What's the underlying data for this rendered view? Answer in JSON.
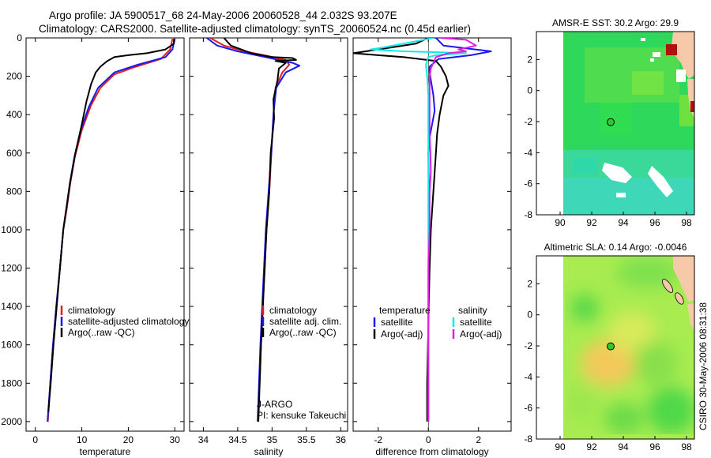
{
  "title_line1": "Argo profile: JA 5900517_68 24-May-2006 20060528_44 2.032S 93.207E",
  "title_line2": "Climatology: CARS2000. Satellite-adjusted climatology: synTS_20060524.nc (0.45d earlier)",
  "credit": "CSIRO 30-May-2006 08:31:38",
  "colors": {
    "red": "#e02020",
    "blue": "#1a1aee",
    "black": "#000000",
    "cyan": "#18e6e6",
    "magenta": "#e020e0"
  },
  "chart_data": [
    {
      "type": "line",
      "xlabel": "temperature",
      "xlim": [
        -2,
        32
      ],
      "ylim": [
        2050,
        0
      ],
      "xticks": [
        0,
        10,
        20,
        30
      ],
      "yticks": [
        0,
        200,
        400,
        600,
        800,
        1000,
        1200,
        1400,
        1600,
        1800,
        2000
      ],
      "legend": [
        {
          "label": "climatology",
          "color": "red"
        },
        {
          "label": "satellite-adjusted climatology",
          "color": "blue"
        },
        {
          "label": "Argo(..raw -QC)",
          "color": "black"
        }
      ],
      "series": [
        {
          "name": "climatology",
          "color": "red",
          "points": [
            [
              29.5,
              5
            ],
            [
              29,
              60
            ],
            [
              27,
              110
            ],
            [
              21,
              155
            ],
            [
              17,
              190
            ],
            [
              14,
              260
            ],
            [
              12,
              350
            ],
            [
              10,
              480
            ],
            [
              8.5,
              620
            ],
            [
              7.5,
              760
            ],
            [
              6.7,
              900
            ],
            [
              6,
              1000
            ],
            [
              5.3,
              1200
            ],
            [
              4.5,
              1400
            ],
            [
              3.8,
              1600
            ],
            [
              3.2,
              1800
            ],
            [
              2.7,
              2000
            ]
          ]
        },
        {
          "name": "satellite-adjusted climatology",
          "color": "blue",
          "points": [
            [
              30,
              5
            ],
            [
              29.5,
              60
            ],
            [
              28,
              100
            ],
            [
              22,
              140
            ],
            [
              17,
              180
            ],
            [
              13.5,
              260
            ],
            [
              11.5,
              360
            ],
            [
              9.8,
              480
            ],
            [
              8.4,
              620
            ],
            [
              7.4,
              760
            ],
            [
              6.6,
              900
            ],
            [
              6,
              1000
            ],
            [
              5.3,
              1200
            ],
            [
              4.5,
              1400
            ],
            [
              3.8,
              1600
            ],
            [
              3.2,
              1800
            ],
            [
              2.6,
              2000
            ]
          ]
        },
        {
          "name": "Argo(..raw -QC)",
          "color": "black",
          "points": [
            [
              29.8,
              5
            ],
            [
              29.8,
              30
            ],
            [
              28,
              60
            ],
            [
              24,
              80
            ],
            [
              20,
              90
            ],
            [
              17,
              100
            ],
            [
              15.5,
              120
            ],
            [
              14,
              150
            ],
            [
              13,
              180
            ],
            [
              12,
              240
            ],
            [
              11,
              330
            ],
            [
              10,
              450
            ],
            [
              8.6,
              600
            ],
            [
              7.5,
              750
            ],
            [
              6.6,
              900
            ],
            [
              6,
              1000
            ],
            [
              5.3,
              1200
            ],
            [
              4.6,
              1400
            ],
            [
              3.9,
              1600
            ],
            [
              3.3,
              1800
            ],
            [
              2.8,
              1950
            ]
          ]
        }
      ]
    },
    {
      "type": "line",
      "xlabel": "salinity",
      "xlim": [
        33.8,
        36.1
      ],
      "ylim": [
        2050,
        0
      ],
      "xticks": [
        34,
        34.5,
        35,
        35.5,
        36
      ],
      "legend": [
        {
          "label": "climatology",
          "color": "red"
        },
        {
          "label": "satellite adj. clim.",
          "color": "blue"
        },
        {
          "label": "Argo(..raw -QC)",
          "color": "black"
        }
      ],
      "annotations": [
        "J-ARGO",
        "PI: kensuke Takeuchi"
      ],
      "series": [
        {
          "name": "climatology",
          "color": "red",
          "points": [
            [
              34.1,
              0
            ],
            [
              34.3,
              40
            ],
            [
              34.6,
              70
            ],
            [
              34.95,
              95
            ],
            [
              35.2,
              115
            ],
            [
              35.25,
              140
            ],
            [
              35.15,
              180
            ],
            [
              35.05,
              260
            ],
            [
              35.02,
              400
            ],
            [
              34.99,
              600
            ],
            [
              34.96,
              800
            ],
            [
              34.92,
              1000
            ],
            [
              34.88,
              1300
            ],
            [
              34.84,
              1600
            ],
            [
              34.8,
              2000
            ]
          ]
        },
        {
          "name": "satellite adj. clim.",
          "color": "blue",
          "points": [
            [
              34.05,
              0
            ],
            [
              34.2,
              40
            ],
            [
              34.5,
              70
            ],
            [
              34.9,
              100
            ],
            [
              35.3,
              130
            ],
            [
              35.4,
              145
            ],
            [
              35.2,
              180
            ],
            [
              35.06,
              260
            ],
            [
              35.02,
              400
            ],
            [
              34.99,
              600
            ],
            [
              34.95,
              800
            ],
            [
              34.91,
              1000
            ],
            [
              34.87,
              1300
            ],
            [
              34.83,
              1600
            ],
            [
              34.79,
              2000
            ]
          ]
        },
        {
          "name": "Argo(..raw -QC)",
          "color": "black",
          "points": [
            [
              34.3,
              0
            ],
            [
              34.4,
              40
            ],
            [
              34.7,
              80
            ],
            [
              35.0,
              100
            ],
            [
              35.3,
              105
            ],
            [
              35.35,
              115
            ],
            [
              35.05,
              120
            ],
            [
              35.2,
              130
            ],
            [
              35.1,
              160
            ],
            [
              35.08,
              220
            ],
            [
              35.02,
              320
            ],
            [
              35.03,
              420
            ],
            [
              34.98,
              600
            ],
            [
              34.96,
              800
            ],
            [
              34.92,
              1000
            ],
            [
              34.88,
              1300
            ],
            [
              34.84,
              1600
            ],
            [
              34.8,
              2000
            ]
          ]
        }
      ]
    },
    {
      "type": "line",
      "xlabel": "difference from climatology",
      "xlim": [
        -3,
        3.3
      ],
      "ylim": [
        2050,
        0
      ],
      "xticks": [
        -2,
        0,
        2
      ],
      "legend_headers": [
        "temperature",
        "salinity"
      ],
      "legend": [
        {
          "label": "satellite",
          "color": "blue",
          "group": "temperature"
        },
        {
          "label": "Argo(-adj)",
          "color": "black",
          "group": "temperature"
        },
        {
          "label": "satellite",
          "color": "cyan",
          "group": "salinity"
        },
        {
          "label": "Argo(-adj)",
          "color": "magenta",
          "group": "salinity"
        }
      ],
      "series": [
        {
          "name": "temperature satellite",
          "color": "blue",
          "points": [
            [
              0.3,
              0
            ],
            [
              0.6,
              40
            ],
            [
              2.5,
              70
            ],
            [
              1.7,
              90
            ],
            [
              0.4,
              110
            ],
            [
              0.05,
              150
            ],
            [
              0.05,
              180
            ],
            [
              0.1,
              220
            ],
            [
              0.15,
              260
            ],
            [
              0.2,
              300
            ],
            [
              0.25,
              380
            ],
            [
              0.15,
              450
            ],
            [
              0.05,
              520
            ],
            [
              0,
              600
            ],
            [
              0.02,
              800
            ],
            [
              0.02,
              1000
            ],
            [
              0,
              1500
            ],
            [
              0,
              2000
            ]
          ]
        },
        {
          "name": "temperature Argo(-adj)",
          "color": "black",
          "points": [
            [
              0,
              0
            ],
            [
              -0.5,
              30
            ],
            [
              -2,
              60
            ],
            [
              -3,
              80
            ],
            [
              -2,
              90
            ],
            [
              -1,
              100
            ],
            [
              0.3,
              120
            ],
            [
              0.5,
              150
            ],
            [
              0.7,
              200
            ],
            [
              0.8,
              250
            ],
            [
              0.6,
              300
            ],
            [
              0.45,
              400
            ],
            [
              0.35,
              500
            ],
            [
              0.3,
              600
            ],
            [
              0.25,
              700
            ],
            [
              0.2,
              800
            ],
            [
              0.15,
              900
            ],
            [
              0.1,
              1000
            ],
            [
              0.05,
              1200
            ],
            [
              0,
              1500
            ],
            [
              -0.05,
              1800
            ],
            [
              -0.05,
              2000
            ]
          ]
        },
        {
          "name": "salinity satellite",
          "color": "cyan",
          "points": [
            [
              0.2,
              0
            ],
            [
              -1.8,
              50
            ],
            [
              -2.3,
              60
            ],
            [
              -1,
              70
            ],
            [
              0.5,
              75
            ],
            [
              1.5,
              80
            ],
            [
              0.3,
              90
            ],
            [
              0,
              100
            ],
            [
              -0.1,
              140
            ],
            [
              -0.05,
              200
            ],
            [
              0,
              300
            ],
            [
              0,
              500
            ],
            [
              0,
              800
            ],
            [
              0,
              1200
            ],
            [
              0,
              1600
            ],
            [
              0,
              2000
            ]
          ]
        },
        {
          "name": "salinity Argo(-adj)",
          "color": "magenta",
          "points": [
            [
              0.5,
              0
            ],
            [
              1.5,
              10
            ],
            [
              1.9,
              40
            ],
            [
              1.2,
              60
            ],
            [
              1.5,
              70
            ],
            [
              0.8,
              80
            ],
            [
              0.3,
              100
            ],
            [
              0.2,
              130
            ],
            [
              0.1,
              160
            ],
            [
              0.05,
              200
            ],
            [
              0.05,
              300
            ],
            [
              0.05,
              400
            ],
            [
              0.05,
              500
            ],
            [
              0.08,
              600
            ],
            [
              0.1,
              700
            ],
            [
              0.05,
              800
            ],
            [
              0.05,
              900
            ],
            [
              0.05,
              1000
            ],
            [
              0,
              1200
            ],
            [
              0,
              1400
            ],
            [
              0,
              1600
            ],
            [
              0,
              1800
            ],
            [
              0,
              2000
            ]
          ]
        }
      ]
    },
    {
      "type": "heatmap",
      "title": "AMSR-E SST: 30.2  Argo: 29.9",
      "xlim": [
        88.5,
        98.5
      ],
      "ylim": [
        -8,
        3.8
      ],
      "xticks": [
        90,
        92,
        94,
        96,
        98
      ],
      "yticks": [
        2,
        0,
        -2,
        -4,
        -6,
        -8
      ],
      "marker": {
        "x": 93.2,
        "y": -2.03
      }
    },
    {
      "type": "heatmap",
      "title": "Altimetric SLA: 0.14  Argo: -0.0046",
      "xlim": [
        88.5,
        98.5
      ],
      "ylim": [
        -8,
        3.8
      ],
      "xticks": [
        90,
        92,
        94,
        96,
        98
      ],
      "yticks": [
        2,
        0,
        -2,
        -4,
        -6,
        -8
      ],
      "marker": {
        "x": 93.2,
        "y": -2.03
      }
    }
  ]
}
